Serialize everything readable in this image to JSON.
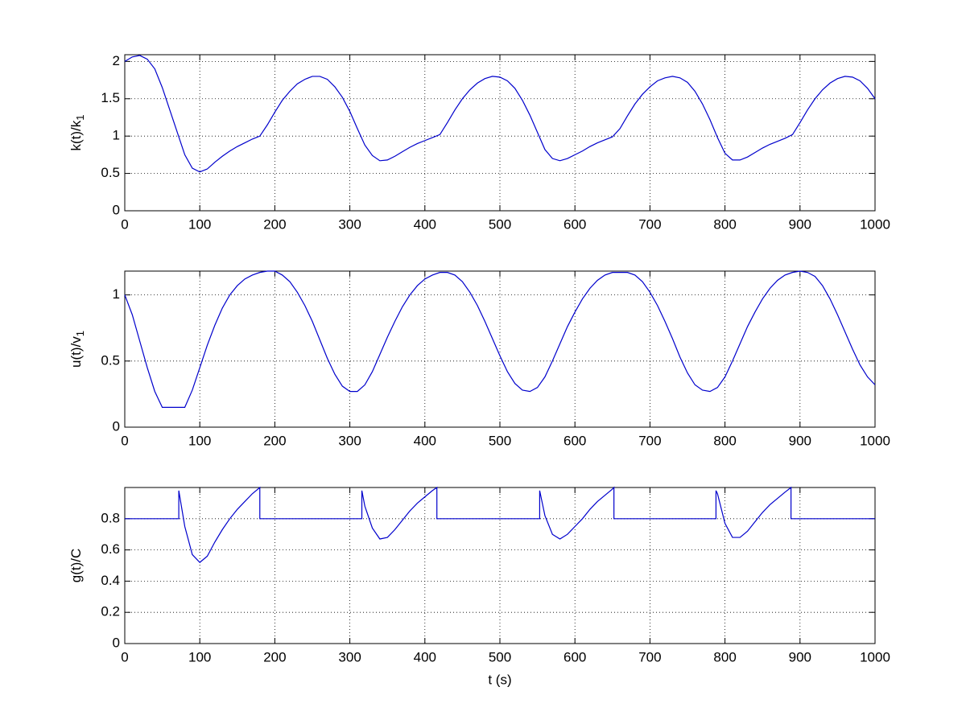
{
  "chart_data": [
    {
      "type": "line",
      "ylabel": [
        "k(t)/k",
        "1"
      ],
      "x": [
        0,
        10,
        20,
        30,
        40,
        50,
        60,
        70,
        80,
        90,
        100,
        110,
        120,
        130,
        140,
        150,
        160,
        170,
        180,
        190,
        200,
        210,
        220,
        230,
        240,
        250,
        260,
        270,
        280,
        290,
        300,
        310,
        320,
        330,
        340,
        350,
        360,
        370,
        380,
        390,
        400,
        410,
        420,
        430,
        440,
        450,
        460,
        470,
        480,
        490,
        500,
        510,
        520,
        530,
        540,
        550,
        560,
        570,
        580,
        590,
        600,
        610,
        620,
        630,
        640,
        650,
        660,
        670,
        680,
        690,
        700,
        710,
        720,
        730,
        740,
        750,
        760,
        770,
        780,
        790,
        800,
        810,
        820,
        830,
        840,
        850,
        860,
        870,
        880,
        890,
        900,
        910,
        920,
        930,
        940,
        950,
        960,
        970,
        980,
        990,
        1000
      ],
      "values": [
        2.0,
        2.06,
        2.08,
        2.03,
        1.9,
        1.65,
        1.35,
        1.05,
        0.75,
        0.57,
        0.52,
        0.56,
        0.65,
        0.73,
        0.8,
        0.86,
        0.91,
        0.96,
        1.0,
        1.15,
        1.32,
        1.48,
        1.6,
        1.7,
        1.76,
        1.8,
        1.8,
        1.76,
        1.66,
        1.52,
        1.33,
        1.1,
        0.88,
        0.74,
        0.67,
        0.68,
        0.73,
        0.79,
        0.85,
        0.9,
        0.94,
        0.98,
        1.02,
        1.18,
        1.35,
        1.5,
        1.62,
        1.71,
        1.77,
        1.8,
        1.79,
        1.74,
        1.64,
        1.48,
        1.28,
        1.05,
        0.82,
        0.7,
        0.67,
        0.7,
        0.75,
        0.8,
        0.86,
        0.91,
        0.95,
        0.99,
        1.1,
        1.27,
        1.43,
        1.56,
        1.66,
        1.74,
        1.78,
        1.8,
        1.78,
        1.72,
        1.6,
        1.43,
        1.22,
        0.98,
        0.77,
        0.68,
        0.68,
        0.72,
        0.78,
        0.84,
        0.89,
        0.93,
        0.97,
        1.02,
        1.18,
        1.35,
        1.5,
        1.62,
        1.71,
        1.77,
        1.8,
        1.79,
        1.74,
        1.64,
        1.5
      ],
      "color": "#0000cc",
      "xlim": [
        0,
        1000
      ],
      "xticks": [
        0,
        100,
        200,
        300,
        400,
        500,
        600,
        700,
        800,
        900,
        1000
      ],
      "ylim": [
        0,
        2.09
      ],
      "yticks": [
        0,
        0.5,
        1,
        1.5,
        2
      ],
      "grid": true
    },
    {
      "type": "line",
      "ylabel": [
        "u(t)/v",
        "1"
      ],
      "x": [
        0,
        10,
        20,
        30,
        40,
        50,
        60,
        70,
        80,
        90,
        100,
        110,
        120,
        130,
        140,
        150,
        160,
        170,
        180,
        190,
        200,
        210,
        220,
        230,
        240,
        250,
        260,
        270,
        280,
        290,
        300,
        310,
        320,
        330,
        340,
        350,
        360,
        370,
        380,
        390,
        400,
        410,
        420,
        430,
        440,
        450,
        460,
        470,
        480,
        490,
        500,
        510,
        520,
        530,
        540,
        550,
        560,
        570,
        580,
        590,
        600,
        610,
        620,
        630,
        640,
        650,
        660,
        670,
        680,
        690,
        700,
        710,
        720,
        730,
        740,
        750,
        760,
        770,
        780,
        790,
        800,
        810,
        820,
        830,
        840,
        850,
        860,
        870,
        880,
        890,
        900,
        910,
        920,
        930,
        940,
        950,
        960,
        970,
        980,
        990,
        1000
      ],
      "values": [
        1.0,
        0.85,
        0.65,
        0.45,
        0.27,
        0.15,
        0.15,
        0.15,
        0.15,
        0.28,
        0.45,
        0.62,
        0.77,
        0.9,
        1.0,
        1.07,
        1.12,
        1.15,
        1.17,
        1.18,
        1.18,
        1.15,
        1.1,
        1.02,
        0.92,
        0.8,
        0.66,
        0.52,
        0.4,
        0.31,
        0.27,
        0.27,
        0.32,
        0.42,
        0.55,
        0.68,
        0.8,
        0.91,
        1.0,
        1.07,
        1.12,
        1.15,
        1.17,
        1.17,
        1.15,
        1.1,
        1.02,
        0.92,
        0.8,
        0.67,
        0.54,
        0.42,
        0.33,
        0.28,
        0.27,
        0.3,
        0.38,
        0.5,
        0.63,
        0.76,
        0.87,
        0.97,
        1.05,
        1.11,
        1.15,
        1.17,
        1.17,
        1.17,
        1.15,
        1.1,
        1.02,
        0.92,
        0.8,
        0.67,
        0.53,
        0.41,
        0.32,
        0.28,
        0.27,
        0.3,
        0.38,
        0.5,
        0.63,
        0.76,
        0.87,
        0.97,
        1.05,
        1.11,
        1.15,
        1.17,
        1.18,
        1.17,
        1.14,
        1.07,
        0.97,
        0.85,
        0.72,
        0.59,
        0.47,
        0.38,
        0.32
      ],
      "color": "#0000cc",
      "xlim": [
        0,
        1000
      ],
      "xticks": [
        0,
        100,
        200,
        300,
        400,
        500,
        600,
        700,
        800,
        900,
        1000
      ],
      "ylim": [
        0,
        1.18
      ],
      "yticks": [
        0,
        0.5,
        1
      ],
      "grid": true
    },
    {
      "type": "line",
      "ylabel": [
        "g(t)/C"
      ],
      "xlabel": "t (s)",
      "x": [
        0,
        72,
        72,
        80,
        90,
        100,
        110,
        120,
        130,
        140,
        150,
        160,
        170,
        180,
        180,
        316,
        316,
        320,
        330,
        340,
        350,
        360,
        370,
        380,
        390,
        400,
        410,
        416,
        416,
        553,
        553,
        560,
        570,
        580,
        590,
        600,
        610,
        620,
        630,
        640,
        650,
        652,
        652,
        788,
        788,
        790,
        800,
        810,
        820,
        830,
        840,
        850,
        860,
        870,
        880,
        888,
        888,
        1000
      ],
      "values": [
        0.8,
        0.8,
        0.98,
        0.75,
        0.57,
        0.52,
        0.56,
        0.65,
        0.73,
        0.8,
        0.86,
        0.91,
        0.96,
        1.0,
        0.8,
        0.8,
        0.98,
        0.88,
        0.74,
        0.67,
        0.68,
        0.73,
        0.79,
        0.85,
        0.9,
        0.94,
        0.98,
        1.0,
        0.8,
        0.8,
        0.98,
        0.82,
        0.7,
        0.67,
        0.7,
        0.75,
        0.8,
        0.86,
        0.91,
        0.95,
        0.99,
        1.0,
        0.8,
        0.8,
        0.98,
        0.96,
        0.77,
        0.68,
        0.68,
        0.72,
        0.78,
        0.84,
        0.89,
        0.93,
        0.97,
        1.0,
        0.8,
        0.8
      ],
      "color": "#0000cc",
      "xlim": [
        0,
        1000
      ],
      "xticks": [
        0,
        100,
        200,
        300,
        400,
        500,
        600,
        700,
        800,
        900,
        1000
      ],
      "ylim": [
        0,
        1
      ],
      "yticks": [
        0,
        0.2,
        0.4,
        0.6,
        0.8
      ],
      "grid": true
    }
  ]
}
